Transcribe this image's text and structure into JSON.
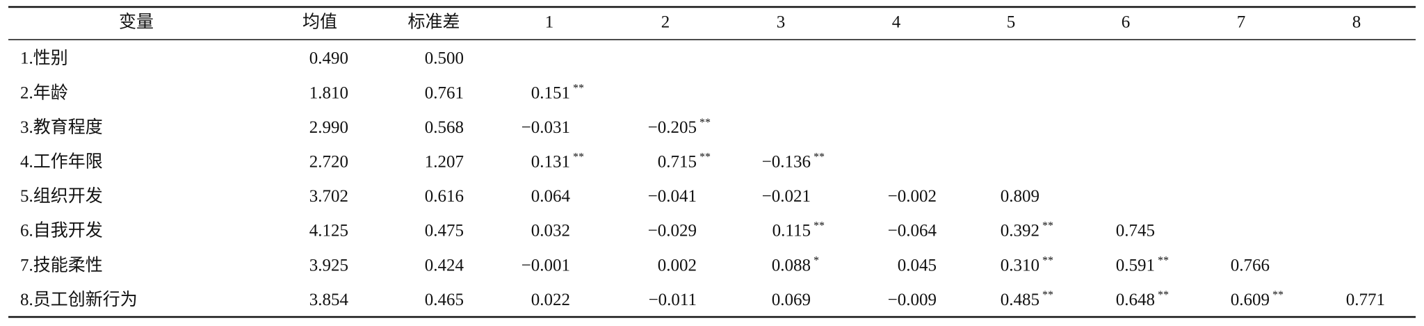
{
  "table": {
    "header": [
      "变量",
      "均值",
      "标准差",
      "1",
      "2",
      "3",
      "4",
      "5",
      "6",
      "7",
      "8"
    ],
    "rows": [
      {
        "label": "1.性别",
        "mean": "0.490",
        "sd": "0.500",
        "correlations": []
      },
      {
        "label": "2.年龄",
        "mean": "1.810",
        "sd": "0.761",
        "correlations": [
          {
            "value": "0.151",
            "sig": "**"
          }
        ]
      },
      {
        "label": "3.教育程度",
        "mean": "2.990",
        "sd": "0.568",
        "correlations": [
          {
            "value": "−0.031"
          },
          {
            "value": "−0.205",
            "sig": "**"
          }
        ]
      },
      {
        "label": "4.工作年限",
        "mean": "2.720",
        "sd": "1.207",
        "correlations": [
          {
            "value": "0.131",
            "sig": "**"
          },
          {
            "value": "0.715",
            "sig": "**"
          },
          {
            "value": "−0.136",
            "sig": "**"
          }
        ]
      },
      {
        "label": "5.组织开发",
        "mean": "3.702",
        "sd": "0.616",
        "correlations": [
          {
            "value": "0.064"
          },
          {
            "value": "−0.041"
          },
          {
            "value": "−0.021"
          },
          {
            "value": "−0.002"
          },
          {
            "value": "0.809"
          }
        ]
      },
      {
        "label": "6.自我开发",
        "mean": "4.125",
        "sd": "0.475",
        "correlations": [
          {
            "value": "0.032"
          },
          {
            "value": "−0.029"
          },
          {
            "value": "0.115",
            "sig": "**"
          },
          {
            "value": "−0.064"
          },
          {
            "value": "0.392",
            "sig": "**"
          },
          {
            "value": "0.745"
          }
        ]
      },
      {
        "label": "7.技能柔性",
        "mean": "3.925",
        "sd": "0.424",
        "correlations": [
          {
            "value": "−0.001"
          },
          {
            "value": "0.002"
          },
          {
            "value": "0.088",
            "sig": "*"
          },
          {
            "value": "0.045"
          },
          {
            "value": "0.310",
            "sig": "**"
          },
          {
            "value": "0.591",
            "sig": "**"
          },
          {
            "value": "0.766"
          }
        ]
      },
      {
        "label": "8.员工创新行为",
        "mean": "3.854",
        "sd": "0.465",
        "correlations": [
          {
            "value": "0.022"
          },
          {
            "value": "−0.011"
          },
          {
            "value": "0.069"
          },
          {
            "value": "−0.009"
          },
          {
            "value": "0.485",
            "sig": "**"
          },
          {
            "value": "0.648",
            "sig": "**"
          },
          {
            "value": "0.609",
            "sig": "**"
          },
          {
            "value": "0.771"
          }
        ]
      }
    ]
  }
}
